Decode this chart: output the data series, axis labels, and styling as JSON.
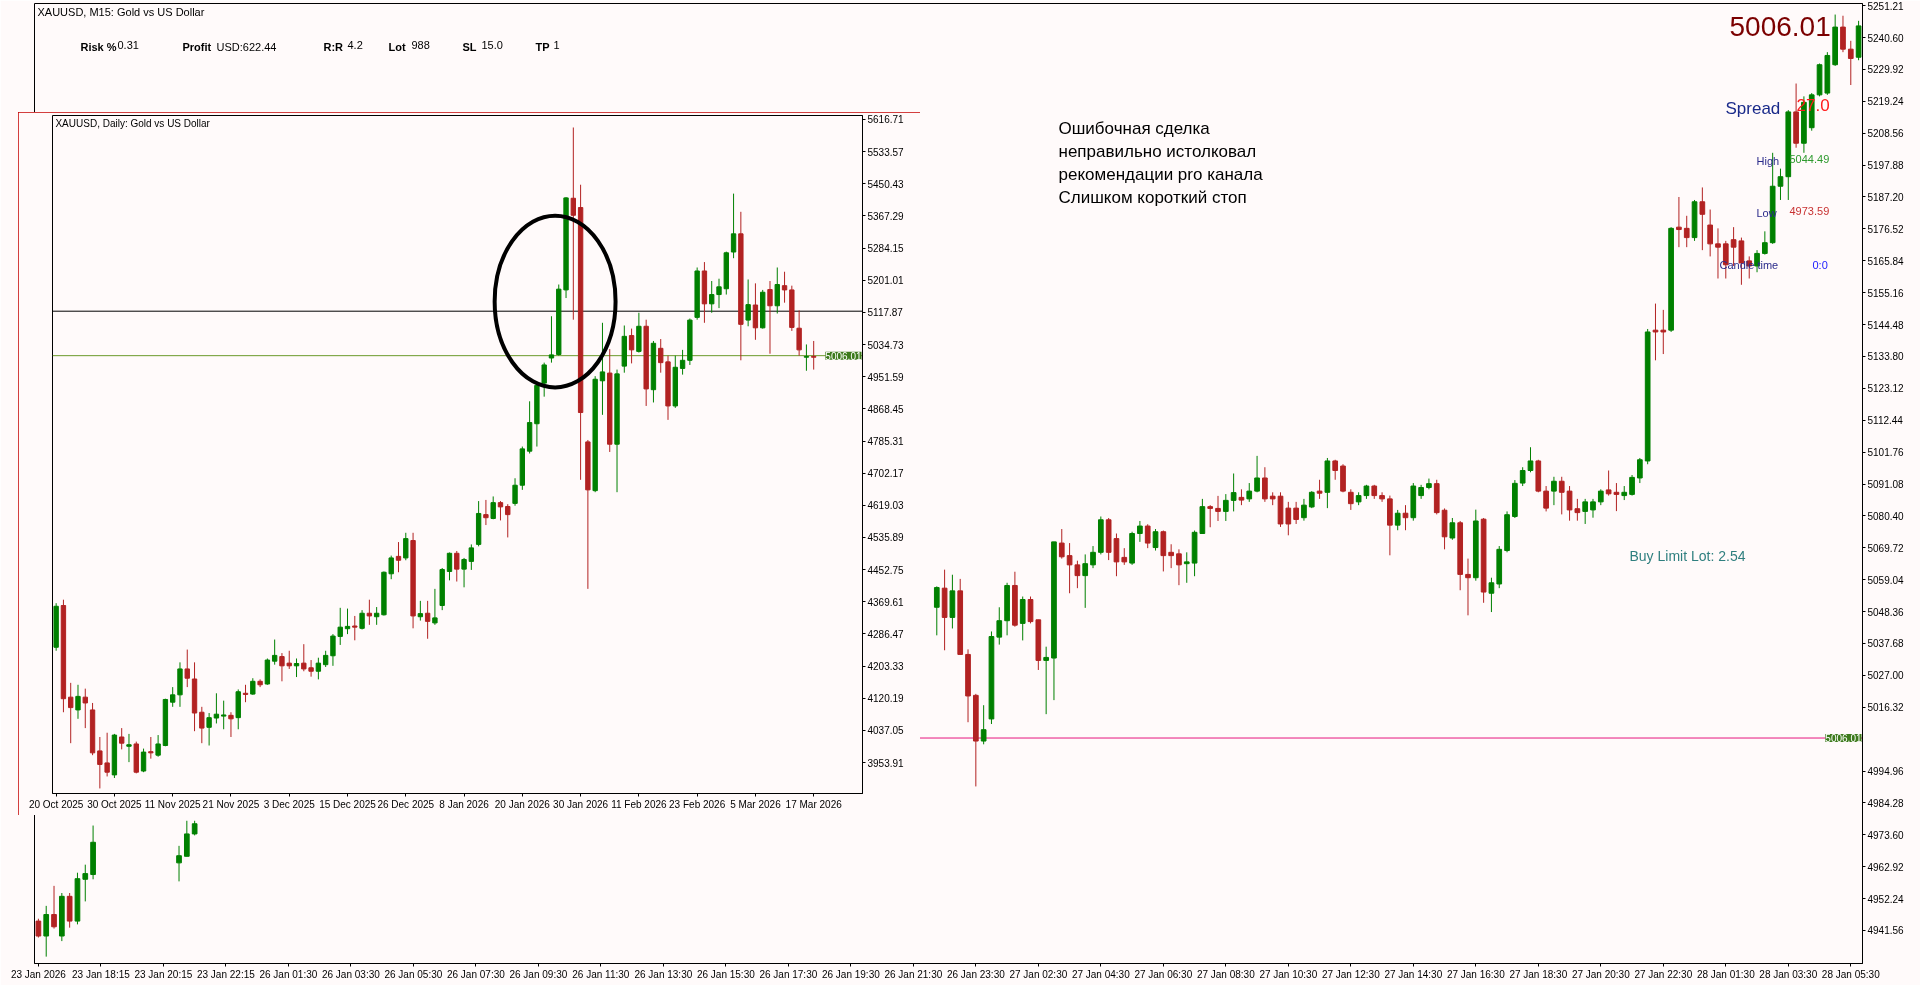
{
  "chart_data": [
    {
      "type": "candlestick",
      "title": "XAUUSD, M15:  Gold vs US Dollar",
      "categories": [
        "23 Jan 2026",
        null,
        null,
        null,
        null,
        null,
        null,
        null,
        "23 Jan 18:15",
        null,
        null,
        null,
        null,
        null,
        null,
        null,
        "23 Jan 20:15",
        null,
        null,
        null,
        null,
        null,
        null,
        null,
        "23 Jan 22:15",
        null,
        null,
        null,
        null,
        null,
        null,
        null,
        "26 Jan 01:30",
        null,
        null,
        null,
        null,
        null,
        null,
        null,
        "26 Jan 03:30",
        null,
        null,
        null,
        null,
        null,
        null,
        null,
        "26 Jan 05:30",
        null,
        null,
        null,
        null,
        null,
        null,
        null,
        "26 Jan 07:30",
        null,
        null,
        null,
        null,
        null,
        null,
        null,
        "26 Jan 09:30",
        null,
        null,
        null,
        null,
        null,
        null,
        null,
        "26 Jan 11:30",
        null,
        null,
        null,
        null,
        null,
        null,
        null,
        "26 Jan 13:30",
        null,
        null,
        null,
        null,
        null,
        null,
        null,
        "26 Jan 15:30",
        null,
        null,
        null,
        null,
        null,
        null,
        null,
        "26 Jan 17:30",
        null,
        null,
        null,
        null,
        null,
        null,
        null,
        "26 Jan 19:30",
        null,
        null,
        null,
        null,
        null,
        null,
        null,
        "26 Jan 21:30",
        null,
        null,
        null,
        null,
        null,
        null,
        null,
        "26 Jan 23:30",
        null,
        null,
        null,
        null,
        null,
        null,
        null,
        "27 Jan 02:30",
        null,
        null,
        null,
        null,
        null,
        null,
        null,
        "27 Jan 04:30",
        null,
        null,
        null,
        null,
        null,
        null,
        null,
        "27 Jan 06:30",
        null,
        null,
        null,
        null,
        null,
        null,
        null,
        "27 Jan 08:30",
        null,
        null,
        null,
        null,
        null,
        null,
        null,
        "27 Jan 10:30",
        null,
        null,
        null,
        null,
        null,
        null,
        null,
        "27 Jan 12:30",
        null,
        null,
        null,
        null,
        null,
        null,
        null,
        "27 Jan 14:30",
        null,
        null,
        null,
        null,
        null,
        null,
        null,
        "27 Jan 16:30",
        null,
        null,
        null,
        null,
        null,
        null,
        null,
        "27 Jan 18:30",
        null,
        null,
        null,
        null,
        null,
        null,
        null,
        "27 Jan 20:30",
        null,
        null,
        null,
        null,
        null,
        null,
        null,
        "27 Jan 22:30",
        null,
        null,
        null,
        null,
        null,
        null,
        null,
        "28 Jan 01:30",
        null,
        null,
        null,
        null,
        null,
        null,
        null,
        "28 Jan 03:30",
        null,
        null,
        null,
        null,
        null,
        null,
        null,
        "28 Jan 05:30",
        null
      ],
      "ohlc": [
        [
          4944.7,
          4945.5,
          4939.2,
          4939.7
        ],
        [
          4939.7,
          4949.8,
          4932.8,
          4946.9
        ],
        [
          4946.9,
          4956.5,
          4942.2,
          4942.8
        ],
        [
          4939.7,
          4954.1,
          4938.0,
          4953.0
        ],
        [
          4953.0,
          4954.1,
          4942.5,
          4944.7
        ],
        [
          4944.7,
          4960.9,
          4943.6,
          4958.9
        ],
        [
          4958.7,
          4963.6,
          4951.3,
          4960.6
        ],
        [
          4960.3,
          4976.7,
          4958.7,
          4971.1
        ],
        null,
        null,
        null,
        null,
        null,
        null,
        null,
        null,
        null,
        null,
        [
          4964.2,
          4969.9,
          4958.0,
          4966.6
        ],
        [
          4966.4,
          4978.3,
          4966.4,
          4973.9
        ],
        [
          4973.9,
          4978.3,
          4973.4,
          4977.3
        ],
        null,
        null,
        null,
        null,
        null,
        null,
        null,
        null,
        null,
        null,
        null,
        null,
        null,
        null,
        null,
        null,
        null,
        null,
        null,
        null,
        null,
        null,
        null,
        null,
        null,
        null,
        null,
        null,
        null,
        null,
        null,
        null,
        null,
        null,
        null,
        null,
        null,
        null,
        null,
        null,
        null,
        null,
        null,
        null,
        null,
        null,
        null,
        null,
        null,
        null,
        null,
        null,
        null,
        null,
        null,
        null,
        null,
        null,
        null,
        null,
        null,
        null,
        null,
        null,
        null,
        null,
        null,
        null,
        null,
        null,
        null,
        null,
        null,
        null,
        null,
        null,
        null,
        null,
        null,
        null,
        null,
        null,
        null,
        null,
        null,
        null,
        null,
        null,
        null,
        null,
        null,
        null,
        null,
        null,
        [
          5049.8,
          5056.8,
          5040.4,
          5056.4
        ],
        [
          5056.2,
          5062.4,
          5035.4,
          5046.4
        ],
        [
          5046.4,
          5060.7,
          5042.7,
          5055.3
        ],
        [
          5055.3,
          5059.3,
          5034.0,
          5034.0
        ],
        [
          5034.0,
          5035.7,
          5011.3,
          5020.1
        ],
        [
          5020.3,
          5020.8,
          4989.8,
          5005.0
        ],
        [
          5005.0,
          5017.0,
          5003.9,
          5008.8
        ],
        [
          5012.4,
          5041.7,
          5010.7,
          5040.0
        ],
        [
          5039.8,
          5049.8,
          5037.3,
          5045.3
        ],
        [
          5045.3,
          5058.0,
          5040.4,
          5057.1
        ],
        [
          5057.1,
          5061.7,
          5043.3,
          5043.8
        ],
        [
          5044.4,
          5053.4,
          5038.7,
          5052.4
        ],
        [
          5052.4,
          5053.4,
          5044.4,
          5045.0
        ],
        [
          5045.6,
          5045.6,
          5028.8,
          5032.0
        ],
        [
          5032.0,
          5036.6,
          5014.0,
          5033.0
        ],
        [
          5032.8,
          5071.7,
          5018.7,
          5071.7
        ],
        [
          5071.3,
          5076.0,
          5066.1,
          5066.7
        ],
        [
          5067.1,
          5071.3,
          5054.5,
          5064.0
        ],
        [
          5064.0,
          5065.4,
          5056.2,
          5060.4
        ],
        [
          5060.4,
          5067.5,
          5049.6,
          5064.4
        ],
        [
          5064.0,
          5070.3,
          5062.9,
          5068.2
        ],
        [
          5068.2,
          5080.2,
          5067.5,
          5079.1
        ],
        [
          5079.1,
          5079.7,
          5065.6,
          5068.2
        ],
        [
          5072.8,
          5074.5,
          5060.2,
          5065.0
        ],
        [
          5066.5,
          5069.6,
          5064.0,
          5065.0
        ],
        [
          5064.6,
          5075.1,
          5064.0,
          5074.5
        ],
        [
          5074.5,
          5078.7,
          5071.7,
          5077.0
        ],
        [
          5077.0,
          5077.6,
          5069.6,
          5071.3
        ],
        [
          5069.8,
          5076.0,
          5068.8,
          5075.1
        ],
        [
          5075.1,
          5075.5,
          5061.8,
          5067.1
        ],
        [
          5068.2,
          5070.9,
          5062.9,
          5067.1
        ],
        [
          5067.7,
          5069.2,
          5057.2,
          5064.0
        ],
        [
          5064.4,
          5068.2,
          5058.0,
          5065.0
        ],
        [
          5064.6,
          5075.5,
          5060.2,
          5074.9
        ],
        [
          5074.5,
          5086.1,
          5074.5,
          5083.5
        ],
        [
          5083.5,
          5084.0,
          5076.6,
          5082.9
        ],
        [
          5082.9,
          5087.1,
          5078.7,
          5081.9
        ],
        [
          5081.9,
          5087.7,
          5078.7,
          5085.6
        ],
        [
          5085.6,
          5094.6,
          5081.9,
          5088.2
        ],
        [
          5086.6,
          5089.3,
          5084.0,
          5085.7
        ],
        [
          5086.1,
          5091.4,
          5085.1,
          5088.7
        ],
        [
          5088.7,
          5100.5,
          5088.3,
          5093.1
        ],
        [
          5093.1,
          5096.7,
          5085.1,
          5086.1
        ],
        [
          5087.0,
          5088.3,
          5084.0,
          5086.1
        ],
        [
          5087.0,
          5088.3,
          5076.7,
          5077.7
        ],
        [
          5083.0,
          5085.1,
          5073.9,
          5077.7
        ],
        [
          5083.0,
          5085.1,
          5077.7,
          5079.2
        ],
        [
          5079.8,
          5086.1,
          5078.8,
          5084.0
        ],
        [
          5083.4,
          5088.7,
          5083.0,
          5088.3
        ],
        [
          5088.7,
          5092.5,
          5086.1,
          5088.0
        ],
        [
          5088.3,
          5099.8,
          5083.0,
          5098.8
        ],
        [
          5098.8,
          5099.2,
          5092.5,
          5095.6
        ],
        [
          5097.1,
          5097.7,
          5088.3,
          5088.7
        ],
        [
          5088.3,
          5089.3,
          5082.4,
          5084.5
        ],
        [
          5085.1,
          5088.3,
          5084.0,
          5087.2
        ],
        [
          5087.2,
          5090.8,
          5086.1,
          5090.4
        ],
        [
          5090.4,
          5090.8,
          5086.1,
          5087.2
        ],
        [
          5087.2,
          5088.3,
          5085.1,
          5086.1
        ],
        [
          5086.1,
          5087.2,
          5067.2,
          5077.3
        ],
        [
          5077.3,
          5082.4,
          5075.6,
          5081.3
        ],
        [
          5081.3,
          5084.0,
          5075.6,
          5079.8
        ],
        [
          5079.8,
          5091.4,
          5078.8,
          5090.4
        ],
        [
          5087.2,
          5090.8,
          5086.1,
          5089.9
        ],
        [
          5089.9,
          5092.9,
          5089.3,
          5091.2
        ],
        [
          5091.2,
          5092.5,
          5080.9,
          5081.5
        ],
        [
          5082.3,
          5082.9,
          5069.2,
          5073.4
        ],
        [
          5073.0,
          5079.7,
          5072.4,
          5078.1
        ],
        [
          5078.1,
          5078.7,
          5055.5,
          5060.8
        ],
        [
          5060.8,
          5066.1,
          5047.1,
          5059.7
        ],
        [
          5059.7,
          5082.5,
          5058.7,
          5078.7
        ],
        [
          5079.3,
          5079.7,
          5051.3,
          5054.9
        ],
        [
          5054.5,
          5059.7,
          5048.2,
          5058.0
        ],
        [
          5057.6,
          5070.3,
          5056.2,
          5069.2
        ],
        [
          5068.8,
          5081.9,
          5068.2,
          5080.8
        ],
        [
          5080.2,
          5092.4,
          5079.7,
          5091.3
        ],
        [
          5091.4,
          5096.7,
          5090.4,
          5095.6
        ],
        [
          5095.6,
          5103.4,
          5095.0,
          5098.8
        ],
        [
          5098.8,
          5099.2,
          5088.3,
          5088.7
        ],
        [
          5088.7,
          5090.4,
          5081.9,
          5083.0
        ],
        [
          5088.7,
          5093.5,
          5084.0,
          5092.0
        ],
        [
          5092.0,
          5093.5,
          5080.9,
          5088.3
        ],
        [
          5088.7,
          5090.4,
          5078.8,
          5082.4
        ],
        [
          5082.8,
          5086.1,
          5078.8,
          5081.5
        ],
        [
          5081.9,
          5086.1,
          5077.7,
          5085.1
        ],
        [
          5082.4,
          5086.1,
          5079.8,
          5085.1
        ],
        [
          5085.1,
          5089.3,
          5084.0,
          5088.7
        ],
        [
          5089.1,
          5095.6,
          5087.2,
          5087.8
        ],
        [
          5088.3,
          5091.4,
          5082.0,
          5087.6
        ],
        [
          5087.2,
          5090.4,
          5085.7,
          5088.3
        ],
        [
          5087.6,
          5094.1,
          5087.2,
          5093.3
        ],
        [
          5093.1,
          5099.8,
          5091.4,
          5099.2
        ],
        [
          5098.8,
          5143.0,
          5097.7,
          5142.0
        ],
        [
          5142.6,
          5151.5,
          5132.5,
          5142.0
        ],
        [
          5142.6,
          5149.4,
          5134.6,
          5142.0
        ],
        [
          5142.6,
          5177.1,
          5142.0,
          5176.7
        ],
        [
          5177.1,
          5187.2,
          5170.4,
          5176.3
        ],
        [
          5176.7,
          5180.9,
          5170.4,
          5173.6
        ],
        [
          5173.6,
          5186.2,
          5172.5,
          5185.6
        ],
        [
          5185.6,
          5190.4,
          5169.4,
          5181.4
        ],
        [
          5177.8,
          5183.0,
          5167.3,
          5171.5
        ],
        [
          5171.5,
          5176.7,
          5159.9,
          5170.4
        ],
        [
          5171.5,
          5172.5,
          5159.9,
          5164.5
        ],
        [
          5172.9,
          5177.1,
          5164.1,
          5170.4
        ],
        [
          5172.5,
          5173.6,
          5157.8,
          5165.1
        ],
        [
          5165.8,
          5167.3,
          5159.9,
          5164.1
        ],
        [
          5164.1,
          5169.4,
          5162.0,
          5168.3
        ],
        [
          5168.3,
          5175.7,
          5167.9,
          5171.9
        ],
        [
          5171.9,
          5202.0,
          5171.5,
          5190.8
        ],
        [
          5190.8,
          5196.7,
          5186.2,
          5194.0
        ],
        [
          5194.0,
          5216.3,
          5186.2,
          5215.7
        ],
        [
          5215.7,
          5225.2,
          5203.7,
          5205.2
        ],
        [
          5205.2,
          5220.9,
          5202.0,
          5218.9
        ],
        [
          5210.4,
          5222.0,
          5209.4,
          5221.4
        ],
        [
          5221.4,
          5231.9,
          5220.9,
          5231.5
        ],
        [
          5222.0,
          5235.7,
          5221.4,
          5234.6
        ],
        [
          5231.5,
          5248.3,
          5231.1,
          5244.1
        ],
        [
          5244.1,
          5247.9,
          5235.7,
          5236.7
        ],
        [
          5236.7,
          5239.5,
          5224.7,
          5233.6
        ],
        [
          5234.0,
          5246.2,
          5233.0,
          5244.5
        ]
      ],
      "colors": [
        "#b22222",
        "#008000",
        "#b22222",
        "#008000",
        "#b22222",
        "#008000",
        "#008000",
        "#008000",
        null,
        null,
        null,
        null,
        null,
        null,
        null,
        null,
        null,
        null,
        "#008000",
        "#008000",
        "#008000",
        null,
        null,
        null,
        null,
        null,
        null,
        null,
        null,
        null,
        null,
        null,
        null,
        null,
        null,
        null,
        null,
        null,
        null,
        null,
        null,
        null,
        null,
        null,
        null,
        null,
        null,
        null,
        null,
        null,
        null,
        null,
        null,
        null,
        null,
        null,
        null,
        null,
        null,
        null,
        null,
        null,
        null,
        null,
        null,
        null,
        null,
        null,
        null,
        null,
        null,
        null,
        null,
        null,
        null,
        null,
        null,
        null,
        null,
        null,
        null,
        null,
        null,
        null,
        null,
        null,
        null,
        null,
        null,
        null,
        null,
        null,
        null,
        null,
        null,
        null,
        null,
        null,
        null,
        null,
        null,
        null,
        null,
        null,
        null,
        null,
        null,
        null,
        null,
        null,
        null,
        null,
        null,
        null,
        null,
        "#008000",
        "#b22222",
        "#008000",
        "#b22222",
        "#b22222",
        "#b22222",
        "#008000",
        "#008000",
        "#008000",
        "#008000",
        "#b22222",
        "#008000",
        "#b22222",
        "#b22222",
        "#008000",
        "#008000",
        "#b22222",
        "#b22222",
        "#b22222",
        "#008000",
        "#008000",
        "#008000",
        "#b22222",
        "#b22222",
        "#b22222",
        "#008000",
        "#008000",
        "#b22222",
        "#008000",
        "#b22222",
        "#b22222",
        "#b22222",
        "#008000",
        "#008000",
        "#008000",
        "#b22222",
        "#b22222",
        "#008000",
        "#008000",
        "#b22222",
        "#008000",
        "#008000",
        "#b22222",
        "#b22222",
        "#b22222",
        "#b22222",
        "#b22222",
        "#008000",
        "#008000",
        "#b22222",
        "#008000",
        "#b22222",
        "#b22222",
        "#b22222",
        "#008000",
        "#008000",
        "#b22222",
        "#b22222",
        "#b22222",
        "#008000",
        "#b22222",
        "#008000",
        "#008000",
        "#008000",
        "#b22222",
        "#b22222",
        "#008000",
        "#b22222",
        "#b22222",
        "#008000",
        "#b22222",
        "#008000",
        "#008000",
        "#008000",
        "#008000",
        "#008000",
        "#008000",
        "#b22222",
        "#b22222",
        "#008000",
        "#b22222",
        "#b22222",
        "#b22222",
        "#008000",
        "#008000",
        "#008000",
        "#b22222",
        "#b22222",
        "#008000",
        "#008000",
        "#008000",
        "#008000",
        "#b22222",
        "#b22222",
        "#008000",
        "#b22222",
        "#b22222",
        "#008000",
        "#b22222",
        "#b22222",
        "#b22222",
        "#b22222",
        "#b22222",
        "#b22222",
        "#b22222",
        "#008000",
        "#008000",
        "#008000",
        "#008000",
        "#008000",
        "#b22222",
        "#008000",
        "#008000",
        "#008000",
        "#008000",
        "#008000",
        "#b22222",
        "#b22222",
        "#008000"
      ],
      "ylim": [
        4930.5,
        5252.0
      ],
      "yticks": [
        4941.56,
        4952.24,
        4962.92,
        {
          "value": 4973.6,
          "label": "4973.60"
        },
        4984.28,
        4994.96,
        5016.32,
        {
          "value": 5027,
          "label": "5027.00"
        },
        5037.68,
        5048.36,
        5059.04,
        5069.72,
        {
          "value": 5080.4,
          "label": "5080.40"
        },
        5091.08,
        5101.76,
        5112.44,
        5123.12,
        {
          "value": 5133.8,
          "label": "5133.80"
        },
        5144.48,
        5155.16,
        5165.84,
        5176.52,
        {
          "value": 5187.2,
          "label": "5187.20"
        },
        5197.88,
        5208.56,
        5219.24,
        5229.92,
        {
          "value": 5240.6,
          "label": "5240.60"
        },
        5251.21
      ],
      "ref_lines": [
        {
          "axis": "y",
          "value": 5006.01,
          "label": "5006.01",
          "color": "#e6157f"
        }
      ],
      "annotations": [
        "Ошибочная сделка",
        "неправильно истолковал",
        "рекомендации pro канала",
        "Слишком короткий стоп",
        "5006.01",
        "Spread",
        "27.0",
        "High",
        "5044.49",
        "Low",
        "4973.59",
        "Candle time",
        "0:0",
        "Buy Limit Lot: 2.54",
        "Risk %",
        "0.31",
        "Profit",
        "USD:622.44",
        "R:R",
        "4.2",
        "Lot",
        "988",
        "SL",
        "15.0",
        "TP",
        "1"
      ]
    },
    {
      "type": "candlestick",
      "title": "XAUUSD, Daily:  Gold vs US Dollar",
      "categories": [
        "20 Oct 2025",
        null,
        null,
        null,
        null,
        null,
        null,
        null,
        "30 Oct 2025",
        null,
        null,
        null,
        null,
        null,
        null,
        null,
        "11 Nov 2025",
        null,
        null,
        null,
        null,
        null,
        null,
        null,
        "21 Nov 2025",
        null,
        null,
        null,
        null,
        null,
        null,
        null,
        "3 Dec 2025",
        null,
        null,
        null,
        null,
        null,
        null,
        null,
        "15 Dec 2025",
        null,
        null,
        null,
        null,
        null,
        null,
        null,
        "26 Dec 2025",
        null,
        null,
        null,
        null,
        null,
        null,
        null,
        "8 Jan 2026",
        null,
        null,
        null,
        null,
        null,
        null,
        null,
        "20 Jan 2026",
        null,
        null,
        null,
        null,
        null,
        null,
        null,
        "30 Jan 2026",
        null,
        null,
        null,
        null,
        null,
        null,
        null,
        "11 Feb 2026",
        null,
        null,
        null,
        null,
        null,
        null,
        null,
        "23 Feb 2026",
        null,
        null,
        null,
        null,
        null,
        null,
        null,
        "5 Mar 2026",
        null,
        null,
        null,
        null,
        null,
        null,
        null,
        "17 Mar 2026"
      ],
      "ohlc": [
        [
          4252,
          4366,
          4243,
          4358
        ],
        [
          4360,
          4375,
          4084,
          4119
        ],
        [
          4123,
          4160,
          4004,
          4096
        ],
        [
          4090,
          4155,
          4067,
          4125
        ],
        [
          4123,
          4145,
          4043,
          4108
        ],
        [
          4090,
          4108,
          3973,
          3979
        ],
        [
          3984,
          4020,
          3887,
          3949
        ],
        [
          3953,
          4031,
          3918,
          3929
        ],
        [
          3922,
          4028,
          3914,
          4025
        ],
        [
          4020,
          4043,
          3988,
          4004
        ],
        [
          3996,
          4028,
          3955,
          4000
        ],
        [
          4002,
          4008,
          3926,
          3929
        ],
        [
          3932,
          3990,
          3929,
          3981
        ],
        [
          3982,
          4020,
          3964,
          3979
        ],
        [
          3973,
          4025,
          3969,
          4002
        ],
        [
          3998,
          4119,
          3996,
          4117
        ],
        [
          4110,
          4149,
          4098,
          4129
        ],
        [
          4129,
          4213,
          4098,
          4196
        ],
        [
          4196,
          4246,
          4149,
          4172
        ],
        [
          4170,
          4213,
          4035,
          4082
        ],
        [
          4084,
          4098,
          4004,
          4043
        ],
        [
          4045,
          4082,
          3998,
          4070
        ],
        [
          4069,
          4133,
          4055,
          4079
        ],
        [
          4074,
          4114,
          4040,
          4077
        ],
        [
          4076,
          4084,
          4020,
          4067
        ],
        [
          4070,
          4143,
          4040,
          4137
        ],
        [
          4133,
          4155,
          4110,
          4130
        ],
        [
          4131,
          4172,
          4129,
          4164
        ],
        [
          4164,
          4169,
          4149,
          4155
        ],
        [
          4157,
          4223,
          4155,
          4219
        ],
        [
          4216,
          4272,
          4207,
          4231
        ],
        [
          4228,
          4237,
          4164,
          4204
        ],
        [
          4211,
          4243,
          4196,
          4204
        ],
        [
          4204,
          4223,
          4175,
          4210
        ],
        [
          4211,
          4260,
          4190,
          4196
        ],
        [
          4199,
          4219,
          4176,
          4190
        ],
        [
          4190,
          4225,
          4169,
          4211
        ],
        [
          4207,
          4243,
          4201,
          4231
        ],
        [
          4230,
          4286,
          4204,
          4281
        ],
        [
          4280,
          4354,
          4258,
          4304
        ],
        [
          4300,
          4352,
          4286,
          4306
        ],
        [
          4307,
          4333,
          4270,
          4304
        ],
        [
          4301,
          4348,
          4298,
          4340
        ],
        [
          4340,
          4375,
          4310,
          4333
        ],
        [
          4331,
          4356,
          4310,
          4340
        ],
        [
          4336,
          4448,
          4334,
          4446
        ],
        [
          4442,
          4489,
          4428,
          4483
        ],
        [
          4487,
          4524,
          4446,
          4477
        ],
        [
          4483,
          4548,
          4477,
          4533
        ],
        [
          4528,
          4548,
          4301,
          4333
        ],
        [
          4331,
          4372,
          4321,
          4339
        ],
        [
          4340,
          4372,
          4274,
          4319
        ],
        [
          4315,
          4403,
          4310,
          4328
        ],
        [
          4360,
          4457,
          4348,
          4453
        ],
        [
          4448,
          4497,
          4425,
          4495
        ],
        [
          4495,
          4501,
          4422,
          4454
        ],
        [
          4454,
          4483,
          4407,
          4479
        ],
        [
          4474,
          4518,
          4452,
          4509
        ],
        [
          4518,
          4630,
          4513,
          4598
        ],
        [
          4595,
          4633,
          4568,
          4587
        ],
        [
          4585,
          4642,
          4583,
          4626
        ],
        [
          4626,
          4630,
          4580,
          4615
        ],
        [
          4616,
          4622,
          4536,
          4595
        ],
        [
          4624,
          4689,
          4618,
          4671
        ],
        [
          4671,
          4771,
          4659,
          4765
        ],
        [
          4759,
          4888,
          4753,
          4833
        ],
        [
          4830,
          4935,
          4771,
          4929
        ],
        [
          4935,
          4988,
          4900,
          4982
        ],
        [
          5000,
          5108,
          4988,
          5008
        ],
        [
          5009,
          5190,
          5006,
          5178
        ],
        [
          5176,
          5416,
          5155,
          5414
        ],
        [
          5413,
          5596,
          5099,
          5369
        ],
        [
          5389,
          5448,
          4685,
          4859
        ],
        [
          4783,
          4788,
          4403,
          4659
        ],
        [
          4657,
          4953,
          4653,
          4945
        ],
        [
          4941,
          5091,
          4853,
          4964
        ],
        [
          4961,
          5023,
          4757,
          4777
        ],
        [
          4777,
          4970,
          4653,
          4959
        ],
        [
          4979,
          5084,
          4962,
          5056
        ],
        [
          5058,
          5076,
          4986,
          5021
        ],
        [
          5017,
          5117,
          5014,
          5082
        ],
        [
          5082,
          5099,
          4876,
          4920
        ],
        [
          4918,
          5044,
          4885,
          5038
        ],
        [
          5025,
          5049,
          4962,
          4988
        ],
        [
          4990,
          5006,
          4840,
          4876
        ],
        [
          4876,
          5006,
          4871,
          4976
        ],
        [
          4973,
          5021,
          4957,
          4994
        ],
        [
          4994,
          5102,
          4982,
          5098
        ],
        [
          5105,
          5234,
          5099,
          5225
        ],
        [
          5225,
          5248,
          5091,
          5140
        ],
        [
          5140,
          5199,
          5117,
          5164
        ],
        [
          5164,
          5205,
          5129,
          5184
        ],
        [
          5179,
          5275,
          5164,
          5272
        ],
        [
          5274,
          5425,
          5258,
          5321
        ],
        [
          5321,
          5378,
          4994,
          5087
        ],
        [
          5098,
          5203,
          5082,
          5138
        ],
        [
          5137,
          5193,
          5047,
          5078
        ],
        [
          5078,
          5176,
          5076,
          5170
        ],
        [
          5177,
          5199,
          5011,
          5135
        ],
        [
          5135,
          5234,
          5115,
          5190
        ],
        [
          5187,
          5223,
          5143,
          5176
        ],
        [
          5176,
          5187,
          5070,
          5079
        ],
        [
          5077,
          5123,
          5006,
          5021
        ],
        [
          5002,
          5035,
          4967,
          5004
        ],
        [
          5004,
          5044,
          4970,
          5002
        ]
      ],
      "colors": [
        "#008000",
        "#b22222",
        "#b22222",
        "#008000",
        "#b22222",
        "#b22222",
        "#b22222",
        "#b22222",
        "#008000",
        "#b22222",
        "#008000",
        "#b22222",
        "#008000",
        "#b22222",
        "#008000",
        "#008000",
        "#008000",
        "#008000",
        "#b22222",
        "#b22222",
        "#b22222",
        "#008000",
        "#008000",
        "#008000",
        "#b22222",
        "#008000",
        "#b22222",
        "#008000",
        "#b22222",
        "#008000",
        "#008000",
        "#b22222",
        "#b22222",
        "#008000",
        "#b22222",
        "#b22222",
        "#008000",
        "#008000",
        "#008000",
        "#008000",
        "#008000",
        "#b22222",
        "#008000",
        "#b22222",
        "#008000",
        "#008000",
        "#008000",
        "#b22222",
        "#008000",
        "#b22222",
        "#008000",
        "#b22222",
        "#008000",
        "#008000",
        "#008000",
        "#b22222",
        "#008000",
        "#008000",
        "#008000",
        "#b22222",
        "#008000",
        "#b22222",
        "#b22222",
        "#008000",
        "#008000",
        "#008000",
        "#008000",
        "#008000",
        "#008000",
        "#008000",
        "#008000",
        "#b22222",
        "#b22222",
        "#b22222",
        "#008000",
        "#008000",
        "#b22222",
        "#008000",
        "#008000",
        "#b22222",
        "#008000",
        "#b22222",
        "#008000",
        "#b22222",
        "#b22222",
        "#008000",
        "#008000",
        "#008000",
        "#008000",
        "#b22222",
        "#008000",
        "#008000",
        "#008000",
        "#008000",
        "#b22222",
        "#008000",
        "#b22222",
        "#008000",
        "#b22222",
        "#008000",
        "#b22222",
        "#b22222",
        "#b22222",
        "#008000",
        "#b22222"
      ],
      "ylim": [
        3873.9,
        5627.0
      ],
      "yticks": [
        3953.91,
        4037.05,
        4120.19,
        4203.33,
        4286.47,
        4369.61,
        4452.75,
        4535.89,
        4619.03,
        4702.17,
        4785.31,
        4868.45,
        4951.59,
        5034.73,
        5117.87,
        5201.01,
        5284.15,
        5367.29,
        5450.43,
        5533.57,
        5616.71
      ],
      "ref_lines": [
        {
          "axis": "y",
          "value": 5006.01,
          "label": "5006.01",
          "color": "#6b9a2a"
        },
        {
          "axis": "y",
          "value": 5121,
          "color": "#000000"
        }
      ]
    }
  ]
}
